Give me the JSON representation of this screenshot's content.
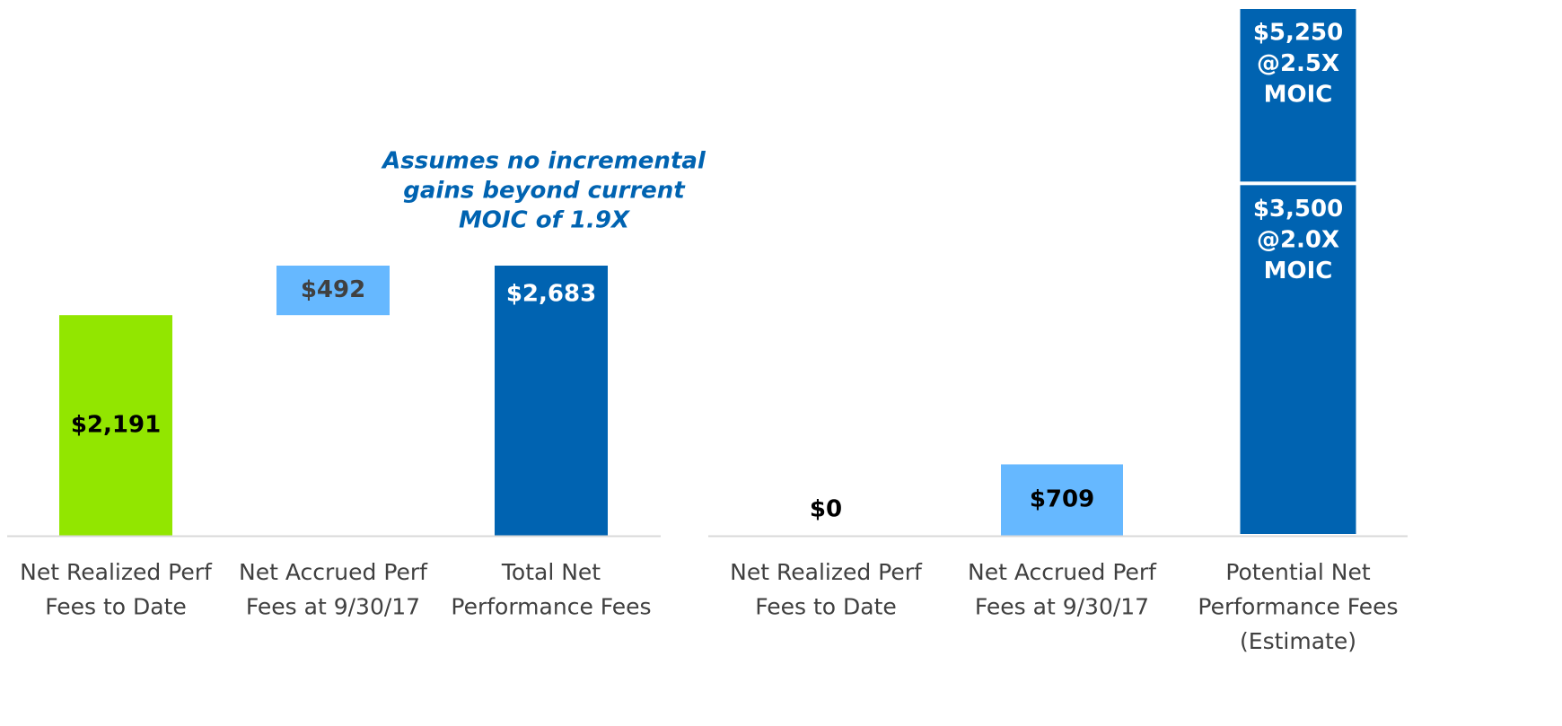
{
  "chart_data": [
    {
      "type": "waterfall",
      "categories": [
        [
          "Net Realized Perf",
          "Fees to Date"
        ],
        [
          "Net Accrued Perf",
          "Fees at 9/30/17"
        ],
        [
          "Total Net",
          "Performance Fees"
        ]
      ],
      "measures": [
        "absolute",
        "relative",
        "total"
      ],
      "values": [
        2191,
        492,
        2683
      ],
      "value_labels": [
        "$2,191",
        "$492",
        "$2,683"
      ],
      "colors": [
        "#92e600",
        "#66b8ff",
        "#0063b1"
      ],
      "label_colors": [
        "#000000",
        "#404040",
        "#ffffff"
      ],
      "annotation": [
        "Assumes no incremental",
        "gains beyond current",
        "MOIC of 1.9X"
      ]
    },
    {
      "type": "waterfall",
      "categories": [
        [
          "Net Realized Perf",
          "Fees to Date"
        ],
        [
          "Net Accrued Perf",
          "Fees at 9/30/17"
        ],
        [
          "Potential Net",
          "Performance Fees",
          "(Estimate)"
        ]
      ],
      "measures": [
        "absolute",
        "relative",
        "estimate"
      ],
      "values": [
        0,
        709,
        null
      ],
      "value_labels": [
        "$0",
        "$709",
        null
      ],
      "colors": [
        "#92e600",
        "#66b8ff",
        "#0063b1"
      ],
      "label_colors": [
        "#000000",
        "#000000",
        "#ffffff"
      ],
      "estimates": [
        {
          "value": 5250,
          "value_label": "$5,250",
          "notes": [
            "@2.5X",
            "MOIC"
          ]
        },
        {
          "value": 3500,
          "value_label": "$3,500",
          "notes": [
            "@2.0X",
            "MOIC"
          ]
        }
      ]
    }
  ]
}
